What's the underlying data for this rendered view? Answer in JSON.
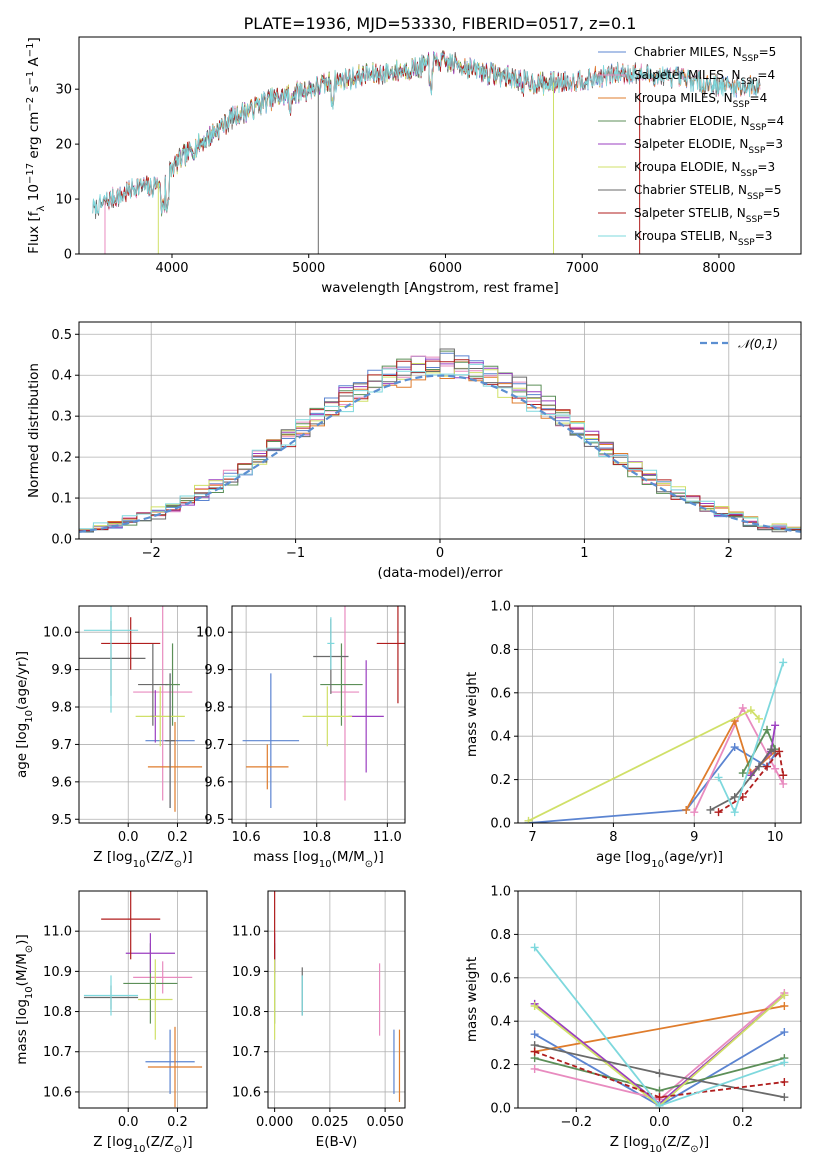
{
  "figure_title": "PLATE=1936, MJD=53330, FIBERID=0517, z=0.1",
  "colors": {
    "Chabrier MILES": "#5b84d1",
    "Salpeter MILES": "#e88bbf",
    "Kroupa MILES": "#df7c2c",
    "Chabrier ELODIE": "#5c8f58",
    "Salpeter ELODIE": "#9b3fc0",
    "Kroupa ELODIE": "#d0e068",
    "Chabrier STELIB": "#6a6a6a",
    "Salpeter STELIB": "#b01e1e",
    "Kroupa STELIB": "#7ed8dd",
    "normal": "#5b8fd1"
  },
  "chart_data": [
    {
      "id": "spectrum",
      "type": "line",
      "title": "PLATE=1936, MJD=53330, FIBERID=0517, z=0.1",
      "xlabel": "wavelength [Angstrom, rest frame]",
      "ylabel": "Flux [f_λ 10^-17 erg cm^-2 s^-1 A^-1]",
      "xlim": [
        3320,
        8600
      ],
      "ylim": [
        0,
        39.5
      ],
      "xticks": [
        4000,
        5000,
        6000,
        7000,
        8000
      ],
      "yticks": [
        0,
        10,
        20,
        30
      ],
      "grid": false,
      "legend_position": "right",
      "x_knots": [
        3450,
        3550,
        3650,
        3750,
        3850,
        3950,
        4050,
        4150,
        4250,
        4350,
        4450,
        4550,
        4700,
        4850,
        5000,
        5200,
        5400,
        5600,
        5800,
        5950,
        6100,
        6300,
        6500,
        6700,
        6900,
        7100,
        7300,
        7500,
        7700,
        7900,
        8100,
        8300
      ],
      "y_knots": [
        8.5,
        10,
        11,
        12.5,
        12,
        14,
        17,
        19,
        21,
        23,
        25,
        26,
        28,
        29,
        30,
        31.5,
        32.5,
        33,
        34,
        35,
        34.5,
        33,
        32,
        31,
        31.5,
        32,
        33,
        32.5,
        32,
        31,
        30.5,
        30.5
      ],
      "series": [
        {
          "name": "Chabrier MILES",
          "nssp": 5,
          "x_range": [
            3510,
            8300
          ]
        },
        {
          "name": "Salpeter MILES",
          "nssp": 4,
          "x_range": [
            3510,
            8300
          ]
        },
        {
          "name": "Kroupa MILES",
          "nssp": 4,
          "x_range": [
            3510,
            8300
          ]
        },
        {
          "name": "Chabrier ELODIE",
          "nssp": 4,
          "x_range": [
            3900,
            6800
          ]
        },
        {
          "name": "Salpeter ELODIE",
          "nssp": 3,
          "x_range": [
            3900,
            6800
          ]
        },
        {
          "name": "Kroupa ELODIE",
          "nssp": 3,
          "x_range": [
            3900,
            6800
          ]
        },
        {
          "name": "Chabrier STELIB",
          "nssp": 5,
          "x_range": [
            3420,
            8300
          ]
        },
        {
          "name": "Salpeter STELIB",
          "nssp": 5,
          "x_range": [
            3500,
            7420
          ]
        },
        {
          "name": "Kroupa STELIB",
          "nssp": 3,
          "x_range": [
            3420,
            8300
          ]
        }
      ],
      "dropouts": [
        {
          "series": "Salpeter MILES",
          "x": 3510
        },
        {
          "series": "Kroupa ELODIE",
          "x": 3900
        },
        {
          "series": "Chabrier STELIB",
          "x": 5070
        },
        {
          "series": "Kroupa ELODIE",
          "x": 6790
        },
        {
          "series": "Salpeter STELIB",
          "x": 7420
        }
      ],
      "legend": [
        {
          "name": "Chabrier MILES",
          "label": "Chabrier MILES, N",
          "sub": "SSP",
          "value": "=5"
        },
        {
          "name": "Salpeter MILES",
          "label": "Salpeter MILES, N",
          "sub": "SSP",
          "value": "=4"
        },
        {
          "name": "Kroupa MILES",
          "label": "Kroupa MILES, N",
          "sub": "SSP",
          "value": "=4"
        },
        {
          "name": "Chabrier ELODIE",
          "label": "Chabrier ELODIE, N",
          "sub": "SSP",
          "value": "=4"
        },
        {
          "name": "Salpeter ELODIE",
          "label": "Salpeter ELODIE, N",
          "sub": "SSP",
          "value": "=3"
        },
        {
          "name": "Kroupa ELODIE",
          "label": "Kroupa ELODIE, N",
          "sub": "SSP",
          "value": "=3"
        },
        {
          "name": "Chabrier STELIB",
          "label": "Chabrier STELIB, N",
          "sub": "SSP",
          "value": "=5"
        },
        {
          "name": "Salpeter STELIB",
          "label": "Salpeter STELIB, N",
          "sub": "SSP",
          "value": "=5"
        },
        {
          "name": "Kroupa STELIB",
          "label": "Kroupa STELIB, N",
          "sub": "SSP",
          "value": "=3"
        }
      ]
    },
    {
      "id": "residuals",
      "type": "histogram",
      "xlabel": "(data-model)/error",
      "ylabel": "Normed distribution",
      "xlim": [
        -2.5,
        2.5
      ],
      "ylim": [
        0,
        0.53
      ],
      "xticks": [
        -2,
        -1,
        0,
        1,
        2
      ],
      "yticks": [
        0.0,
        0.1,
        0.2,
        0.3,
        0.4,
        0.5
      ],
      "grid": true,
      "bin_width": 0.1,
      "legend": {
        "label": "𝒩(0,1)",
        "position": "top-right",
        "style": "dashed"
      },
      "reference": {
        "name": "N(0,1)",
        "mean": 0,
        "sigma": 1
      }
    },
    {
      "id": "age-vs-Z",
      "type": "errorbar",
      "xlabel": "Z [log10(Z/Z_sun)]",
      "ylabel": "age [log10(age/yr)]",
      "xlim": [
        -0.2,
        0.32
      ],
      "ylim": [
        9.49,
        10.07
      ],
      "xticks": [
        0.0,
        0.2
      ],
      "yticks": [
        9.5,
        9.6,
        9.7,
        9.8,
        9.9,
        10.0
      ],
      "grid": true,
      "points": [
        {
          "series": "Chabrier MILES",
          "x": 0.17,
          "xerr": 0.1,
          "y": 9.71,
          "yerr": 0.18
        },
        {
          "series": "Salpeter MILES",
          "x": 0.14,
          "xerr": 0.12,
          "y": 9.84,
          "yerr": 0.29
        },
        {
          "series": "Kroupa MILES",
          "x": 0.19,
          "xerr": 0.11,
          "y": 9.64,
          "yerr": 0.12
        },
        {
          "series": "Chabrier ELODIE",
          "x": 0.18,
          "xerr": 0.03,
          "y": 9.86,
          "yerr": 0.11
        },
        {
          "series": "Salpeter ELODIE",
          "x": 0.11,
          "xerr": 0.02,
          "y": 9.775,
          "yerr": 0.07
        },
        {
          "series": "Kroupa ELODIE",
          "x": 0.13,
          "xerr": 0.1,
          "y": 9.775,
          "yerr": 0.08
        },
        {
          "series": "Chabrier STELIB",
          "x": 0.17,
          "xerr": 0.02,
          "y": 9.71,
          "yerr": 0.18
        },
        {
          "series": "Chabrier STELIB",
          "x": -0.07,
          "xerr": 0.14,
          "y": 9.93,
          "yerr": 0.1
        },
        {
          "series": "Chabrier STELIB",
          "x": 0.1,
          "xerr": 0.06,
          "y": 9.86,
          "yerr": 0.11
        },
        {
          "series": "Salpeter STELIB",
          "x": 0.01,
          "xerr": 0.12,
          "y": 9.97,
          "yerr": 0.07
        },
        {
          "series": "Kroupa STELIB",
          "x": -0.07,
          "xerr": 0.11,
          "y": 10.005,
          "yerr": 0.22
        }
      ]
    },
    {
      "id": "age-vs-mass",
      "type": "errorbar",
      "xlabel": "mass [log10(M/M_sun)]",
      "ylabel": "",
      "xlim": [
        10.56,
        11.05
      ],
      "ylim": [
        9.49,
        10.07
      ],
      "xticks": [
        10.6,
        10.8,
        11.0
      ],
      "yticks": [
        9.5,
        9.6,
        9.7,
        9.8,
        9.9,
        10.0
      ],
      "grid": true,
      "points": [
        {
          "series": "Chabrier MILES",
          "x": 10.67,
          "xerr": 0.08,
          "y": 9.71,
          "yerr": 0.18
        },
        {
          "series": "Salpeter MILES",
          "x": 10.88,
          "xerr": 0.04,
          "y": 9.84,
          "yerr": 0.29
        },
        {
          "series": "Kroupa MILES",
          "x": 10.66,
          "xerr": 0.06,
          "y": 9.64,
          "yerr": 0.06
        },
        {
          "series": "Chabrier ELODIE",
          "x": 10.87,
          "xerr": 0.06,
          "y": 9.86,
          "yerr": 0.11
        },
        {
          "series": "Salpeter ELODIE",
          "x": 10.94,
          "xerr": 0.05,
          "y": 9.775,
          "yerr": 0.15
        },
        {
          "series": "Kroupa ELODIE",
          "x": 10.83,
          "xerr": 0.07,
          "y": 9.775,
          "yerr": 0.08
        },
        {
          "series": "Chabrier STELIB",
          "x": 10.84,
          "xerr": 0.05,
          "y": 9.935,
          "yerr": 0.1
        },
        {
          "series": "Salpeter STELIB",
          "x": 11.03,
          "xerr": 0.06,
          "y": 9.97,
          "yerr": 0.16
        },
        {
          "series": "Kroupa STELIB",
          "x": 10.84,
          "xerr": 0.01,
          "y": 9.97,
          "yerr": 0.07
        }
      ]
    },
    {
      "id": "weight-vs-age",
      "type": "line",
      "xlabel": "age [log10(age/yr)]",
      "ylabel": "mass weight",
      "xlim": [
        6.82,
        10.32
      ],
      "ylim": [
        0,
        1.0
      ],
      "xticks": [
        7,
        8,
        9,
        10
      ],
      "yticks": [
        0.0,
        0.2,
        0.4,
        0.6,
        0.8,
        1.0
      ],
      "grid": true,
      "series": [
        {
          "name": "Chabrier MILES",
          "x": [
            6.95,
            8.9,
            9.5,
            9.9,
            10.0
          ],
          "y": [
            0.0,
            0.06,
            0.35,
            0.26,
            0.32
          ]
        },
        {
          "name": "Salpeter MILES",
          "x": [
            9.0,
            9.6,
            10.0,
            10.1
          ],
          "y": [
            0.05,
            0.53,
            0.25,
            0.18
          ]
        },
        {
          "name": "Kroupa MILES",
          "x": [
            8.9,
            9.5,
            9.7,
            10.0
          ],
          "y": [
            0.06,
            0.47,
            0.23,
            0.33
          ]
        },
        {
          "name": "Chabrier ELODIE",
          "x": [
            9.6,
            9.9,
            10.0
          ],
          "y": [
            0.23,
            0.43,
            0.34
          ]
        },
        {
          "name": "Salpeter ELODIE",
          "x": [
            9.7,
            9.95,
            10.0
          ],
          "y": [
            0.22,
            0.33,
            0.45
          ]
        },
        {
          "name": "Kroupa ELODIE",
          "x": [
            6.95,
            9.7,
            9.8
          ],
          "y": [
            0.01,
            0.52,
            0.48
          ]
        },
        {
          "name": "Chabrier STELIB",
          "x": [
            9.2,
            9.5,
            9.8,
            9.95,
            10.0
          ],
          "y": [
            0.06,
            0.12,
            0.26,
            0.34,
            0.33
          ]
        },
        {
          "name": "Salpeter STELIB",
          "x": [
            9.3,
            9.6,
            9.9,
            10.05,
            10.1
          ],
          "y": [
            0.05,
            0.12,
            0.26,
            0.33,
            0.22
          ]
        },
        {
          "name": "Kroupa STELIB",
          "x": [
            9.3,
            9.5,
            10.1
          ],
          "y": [
            0.21,
            0.05,
            0.74
          ]
        }
      ]
    },
    {
      "id": "mass-vs-Z",
      "type": "errorbar",
      "xlabel": "Z [log10(Z/Z_sun)]",
      "ylabel": "mass [log10(M/M_sun)]",
      "xlim": [
        -0.2,
        0.32
      ],
      "ylim": [
        10.56,
        11.1
      ],
      "xticks": [
        0.0,
        0.2
      ],
      "yticks": [
        10.6,
        10.7,
        10.8,
        10.9,
        11.0
      ],
      "grid": true,
      "points": [
        {
          "series": "Chabrier MILES",
          "x": 0.17,
          "xerr": 0.1,
          "y": 10.675,
          "yerr": 0.08
        },
        {
          "series": "Salpeter MILES",
          "x": 0.14,
          "xerr": 0.12,
          "y": 10.885,
          "yerr": 0.04
        },
        {
          "series": "Kroupa MILES",
          "x": 0.19,
          "xerr": 0.11,
          "y": 10.662,
          "yerr": 0.1
        },
        {
          "series": "Chabrier ELODIE",
          "x": 0.09,
          "xerr": 0.11,
          "y": 10.87,
          "yerr": 0.1
        },
        {
          "series": "Salpeter ELODIE",
          "x": 0.09,
          "xerr": 0.1,
          "y": 10.945,
          "yerr": 0.05
        },
        {
          "series": "Kroupa ELODIE",
          "x": 0.11,
          "xerr": 0.07,
          "y": 10.83,
          "yerr": 0.1
        },
        {
          "series": "Chabrier STELIB",
          "x": -0.07,
          "xerr": 0.11,
          "y": 10.835,
          "yerr": 0.03
        },
        {
          "series": "Salpeter STELIB",
          "x": 0.01,
          "xerr": 0.12,
          "y": 11.03,
          "yerr": 0.1
        },
        {
          "series": "Kroupa STELIB",
          "x": -0.07,
          "xerr": 0.11,
          "y": 10.84,
          "yerr": 0.05
        }
      ]
    },
    {
      "id": "mass-vs-ebv",
      "type": "errorbar",
      "xlabel": "E(B-V)",
      "ylabel": "",
      "xlim": [
        -0.003,
        0.059
      ],
      "ylim": [
        10.56,
        11.1
      ],
      "xticks": [
        0.0,
        0.025,
        0.05
      ],
      "xtick_labels": [
        "0.000",
        "0.025",
        "0.050"
      ],
      "yticks": [
        10.6,
        10.7,
        10.8,
        10.9,
        11.0
      ],
      "grid": true,
      "points": [
        {
          "series": "Chabrier MILES",
          "x": 0.054,
          "y": 10.675,
          "yerr": 0.08
        },
        {
          "series": "Salpeter MILES",
          "x": 0.0475,
          "y": 10.83,
          "yerr": 0.09
        },
        {
          "series": "Kroupa MILES",
          "x": 0.0565,
          "y": 10.665,
          "yerr": 0.09
        },
        {
          "series": "Chabrier ELODIE",
          "x": 0.0,
          "y": 10.87,
          "yerr": 0.1
        },
        {
          "series": "Salpeter ELODIE",
          "x": 0.0,
          "y": 10.945,
          "yerr": 0.05
        },
        {
          "series": "Kroupa ELODIE",
          "x": 0.0,
          "y": 10.83,
          "yerr": 0.1
        },
        {
          "series": "Chabrier STELIB",
          "x": 0.0125,
          "y": 10.85,
          "yerr": 0.06
        },
        {
          "series": "Salpeter STELIB",
          "x": 0.0,
          "y": 11.03,
          "yerr": 0.1
        },
        {
          "series": "Kroupa STELIB",
          "x": 0.0125,
          "y": 10.84,
          "yerr": 0.05
        }
      ]
    },
    {
      "id": "weight-vs-Z",
      "type": "line",
      "xlabel": "Z [log10(Z/Z_sun)]",
      "ylabel": "mass weight",
      "xlim": [
        -0.34,
        0.34
      ],
      "ylim": [
        0,
        1.0
      ],
      "xticks": [
        -0.2,
        0.0,
        0.2
      ],
      "yticks": [
        0.0,
        0.2,
        0.4,
        0.6,
        0.8,
        1.0
      ],
      "grid": true,
      "series": [
        {
          "name": "Chabrier MILES",
          "x": [
            -0.3,
            0.0,
            0.3
          ],
          "y": [
            0.34,
            0.01,
            0.35
          ]
        },
        {
          "name": "Salpeter MILES",
          "x": [
            -0.3,
            0.0,
            0.3
          ],
          "y": [
            0.18,
            0.04,
            0.53
          ]
        },
        {
          "name": "Kroupa MILES",
          "x": [
            -0.3,
            0.3
          ],
          "y": [
            0.26,
            0.47
          ]
        },
        {
          "name": "Chabrier ELODIE",
          "x": [
            -0.3,
            0.0,
            0.3
          ],
          "y": [
            0.23,
            0.08,
            0.23
          ]
        },
        {
          "name": "Salpeter ELODIE",
          "x": [
            -0.3,
            0.0,
            0.3
          ],
          "y": [
            0.48,
            0.02,
            0.52
          ]
        },
        {
          "name": "Kroupa ELODIE",
          "x": [
            -0.3,
            0.0,
            0.3
          ],
          "y": [
            0.47,
            0.01,
            0.52
          ]
        },
        {
          "name": "Chabrier STELIB",
          "x": [
            -0.3,
            0.0,
            0.3
          ],
          "y": [
            0.29,
            0.16,
            0.05
          ]
        },
        {
          "name": "Salpeter STELIB",
          "x": [
            -0.3,
            0.0,
            0.3
          ],
          "y": [
            0.26,
            0.05,
            0.12
          ]
        },
        {
          "name": "Kroupa STELIB",
          "x": [
            -0.3,
            0.0,
            0.3
          ],
          "y": [
            0.74,
            0.01,
            0.21
          ]
        }
      ]
    }
  ]
}
